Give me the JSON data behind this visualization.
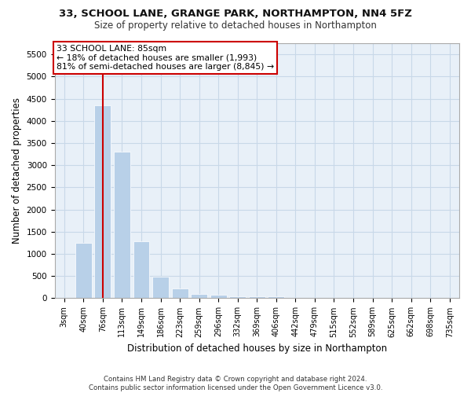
{
  "title1": "33, SCHOOL LANE, GRANGE PARK, NORTHAMPTON, NN4 5FZ",
  "title2": "Size of property relative to detached houses in Northampton",
  "xlabel": "Distribution of detached houses by size in Northampton",
  "ylabel": "Number of detached properties",
  "bar_color": "#b8d0e8",
  "categories": [
    "3sqm",
    "40sqm",
    "76sqm",
    "113sqm",
    "149sqm",
    "186sqm",
    "223sqm",
    "259sqm",
    "296sqm",
    "332sqm",
    "369sqm",
    "406sqm",
    "442sqm",
    "479sqm",
    "515sqm",
    "552sqm",
    "589sqm",
    "625sqm",
    "662sqm",
    "698sqm",
    "735sqm"
  ],
  "values": [
    0,
    1250,
    4350,
    3300,
    1280,
    490,
    215,
    90,
    70,
    50,
    50,
    50,
    0,
    0,
    0,
    0,
    0,
    0,
    0,
    0,
    0
  ],
  "ylim": [
    0,
    5750
  ],
  "yticks": [
    0,
    500,
    1000,
    1500,
    2000,
    2500,
    3000,
    3500,
    4000,
    4500,
    5000,
    5500
  ],
  "red_line_x": 2,
  "annotation_text": "33 SCHOOL LANE: 85sqm\n← 18% of detached houses are smaller (1,993)\n81% of semi-detached houses are larger (8,845) →",
  "annotation_box_facecolor": "#ffffff",
  "annotation_box_edgecolor": "#cc0000",
  "grid_color": "#c8d8e8",
  "background_color": "#e8f0f8",
  "footer1": "Contains HM Land Registry data © Crown copyright and database right 2024.",
  "footer2": "Contains public sector information licensed under the Open Government Licence v3.0."
}
